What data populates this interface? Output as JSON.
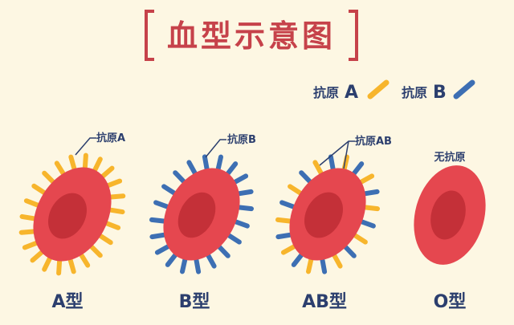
{
  "title": "血型示意图",
  "legend": [
    {
      "label": "抗原",
      "letter": "A",
      "color": "#f7b52c"
    },
    {
      "label": "抗原",
      "letter": "B",
      "color": "#3d6fb3"
    }
  ],
  "cells": [
    {
      "type_label": "A型",
      "annotation": "抗原A",
      "antigen_colors": [
        "#f7b52c"
      ]
    },
    {
      "type_label": "B型",
      "annotation": "抗原B",
      "antigen_colors": [
        "#3d6fb3"
      ]
    },
    {
      "type_label": "AB型",
      "annotation": "抗原AB",
      "antigen_colors": [
        "#f7b52c",
        "#3d6fb3"
      ]
    },
    {
      "type_label": "O型",
      "annotation": "无抗原",
      "antigen_colors": []
    }
  ],
  "colors": {
    "background": "#fdf7e3",
    "title": "#c6424a",
    "cell_outer": "#e5474f",
    "cell_inner": "#c43038",
    "label": "#2c3f6e"
  }
}
